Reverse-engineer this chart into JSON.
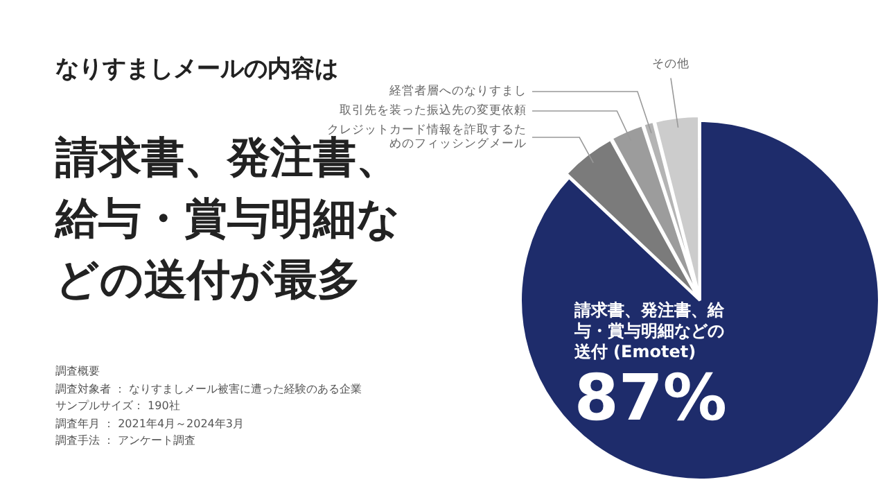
{
  "chart_data": {
    "type": "pie",
    "title": "なりすましメールの内容は",
    "subtitle": "請求書、発注書、給与・賞与明細などの送付が最多",
    "categories": [
      "請求書、発注書、給与・賞与明細などの送付 (Emotet)",
      "クレジットカード情報を詐取するためのフィッシングメール",
      "取引先を装った振込先の変更依頼",
      "経営者層へのなりすまし",
      "その他"
    ],
    "values": [
      87,
      5,
      3,
      1,
      4
    ],
    "colors": [
      "#1e2c6b",
      "#7b7b7b",
      "#9c9c9c",
      "#b4b4b4",
      "#cccccc"
    ],
    "value_labels": [
      "87%",
      null,
      null,
      null,
      null
    ],
    "annotations": [
      "調査概要",
      "調査対象者 ： なりすましメール被害に遭った経験のある企業",
      "サンプルサイズ： 190社",
      "調査年月 ： 2021年4月～2024年3月",
      "調査手法 ： アンケート調査"
    ],
    "legend": false
  }
}
